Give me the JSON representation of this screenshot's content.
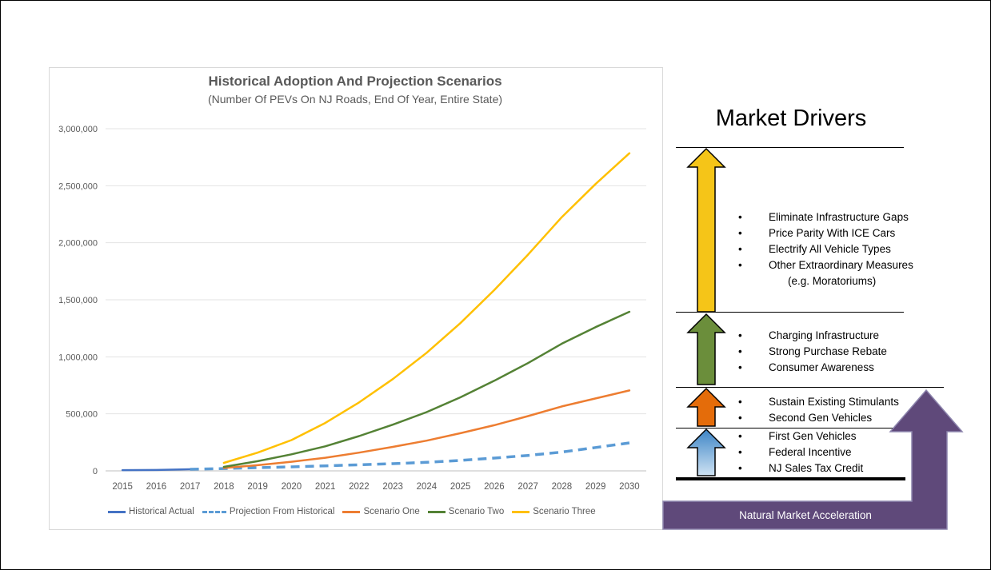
{
  "chart_data": {
    "type": "line",
    "title": "Historical Adoption And Projection Scenarios",
    "subtitle": "(Number Of PEVs On NJ Roads, End Of Year, Entire State)",
    "x": [
      "2015",
      "2016",
      "2017",
      "2018",
      "2019",
      "2020",
      "2021",
      "2022",
      "2023",
      "2024",
      "2025",
      "2026",
      "2027",
      "2028",
      "2029",
      "2030"
    ],
    "ylim": [
      0,
      3000000
    ],
    "yticks": [
      0,
      500000,
      1000000,
      1500000,
      2000000,
      2500000,
      3000000
    ],
    "ytick_labels": [
      "0",
      "500,000",
      "1,000,000",
      "1,500,000",
      "2,000,000",
      "2,500,000",
      "3,000,000"
    ],
    "grid": true,
    "legend": "bottom",
    "series": [
      {
        "name": "Historical Actual",
        "color": "#4472c4",
        "dash": false,
        "values": [
          6000,
          8000,
          14000,
          null,
          null,
          null,
          null,
          null,
          null,
          null,
          null,
          null,
          null,
          null,
          null,
          null
        ]
      },
      {
        "name": "Projection From Historical",
        "color": "#5b9bd5",
        "dash": true,
        "values": [
          null,
          null,
          14000,
          20000,
          28000,
          35000,
          44000,
          53000,
          63000,
          75000,
          92000,
          112000,
          135000,
          165000,
          205000,
          245000
        ]
      },
      {
        "name": "Scenario One",
        "color": "#ed7d31",
        "dash": false,
        "values": [
          null,
          null,
          null,
          25000,
          50000,
          80000,
          115000,
          160000,
          210000,
          265000,
          330000,
          400000,
          480000,
          565000,
          635000,
          705000
        ]
      },
      {
        "name": "Scenario Two",
        "color": "#548235",
        "dash": false,
        "values": [
          null,
          null,
          null,
          35000,
          85000,
          145000,
          215000,
          305000,
          405000,
          515000,
          645000,
          790000,
          945000,
          1115000,
          1260000,
          1395000
        ]
      },
      {
        "name": "Scenario Three",
        "color": "#ffc000",
        "dash": false,
        "values": [
          null,
          null,
          null,
          70000,
          160000,
          270000,
          420000,
          600000,
          805000,
          1035000,
          1295000,
          1585000,
          1895000,
          2225000,
          2515000,
          2785000
        ]
      }
    ]
  },
  "drivers": {
    "title": "Market Drivers",
    "tier_yellow": [
      "Eliminate Infrastructure Gaps",
      "Price Parity With ICE Cars",
      "Electrify All Vehicle Types",
      "Other Extraordinary Measures"
    ],
    "tier_yellow_sub": "(e.g. Moratoriums)",
    "tier_green": [
      "Charging Infrastructure",
      "Strong Purchase Rebate",
      "Consumer Awareness"
    ],
    "tier_orange": [
      "Sustain Existing Stimulants",
      "Second Gen Vehicles"
    ],
    "tier_blue": [
      "First Gen Vehicles",
      "Federal Incentive",
      "NJ Sales Tax Credit"
    ],
    "bullet": "•",
    "natural_label": "Natural Market  Acceleration",
    "colors": {
      "yellow": "#f5c518",
      "green": "#6b8e3b",
      "orange": "#e46c0a",
      "blue": "#6fa8dc",
      "purple": "#5f497a"
    }
  }
}
